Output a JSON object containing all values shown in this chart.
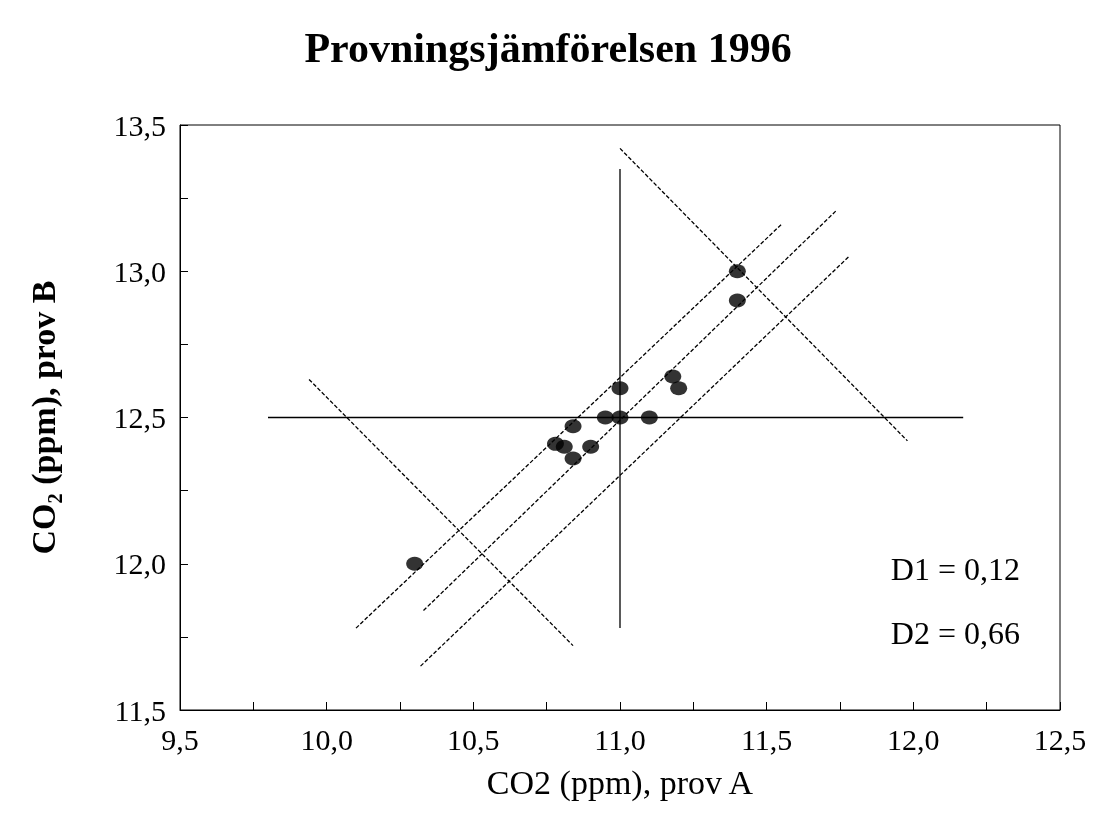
{
  "chart_data": {
    "type": "scatter",
    "title": "Provningsjämförelsen 1996",
    "xlabel": "CO2 (ppm), prov A",
    "ylabel": "CO₂ (ppm), prov B",
    "xlim": [
      9.5,
      12.5
    ],
    "ylim": [
      11.5,
      13.5
    ],
    "xticks": [
      {
        "value": 9.5,
        "label": "9,5"
      },
      {
        "value": 9.75,
        "label": null
      },
      {
        "value": 10.0,
        "label": "10,0"
      },
      {
        "value": 10.25,
        "label": null
      },
      {
        "value": 10.5,
        "label": "10,5"
      },
      {
        "value": 10.75,
        "label": null
      },
      {
        "value": 11.0,
        "label": "11,0"
      },
      {
        "value": 11.25,
        "label": null
      },
      {
        "value": 11.5,
        "label": "11,5"
      },
      {
        "value": 11.75,
        "label": null
      },
      {
        "value": 12.0,
        "label": "12,0"
      },
      {
        "value": 12.25,
        "label": null
      },
      {
        "value": 12.5,
        "label": "12,5"
      }
    ],
    "yticks": [
      {
        "value": 11.5,
        "label": "11,5"
      },
      {
        "value": 11.75,
        "label": null
      },
      {
        "value": 12.0,
        "label": "12,0"
      },
      {
        "value": 12.25,
        "label": null
      },
      {
        "value": 12.5,
        "label": "12,5"
      },
      {
        "value": 12.75,
        "label": null
      },
      {
        "value": 13.0,
        "label": "13,0"
      },
      {
        "value": 13.25,
        "label": null
      },
      {
        "value": 13.5,
        "label": "13,5"
      }
    ],
    "grid": false,
    "annotations": [
      "D1 = 0,12",
      "D2 = 0,66"
    ],
    "series": [
      {
        "type": "line",
        "line_style": "solid",
        "marker": "none",
        "color": "#000000",
        "x": [
          9.8,
          12.17
        ],
        "values": [
          12.5,
          12.5
        ]
      },
      {
        "type": "line",
        "line_style": "solid",
        "marker": "none",
        "color": "#000000",
        "x": [
          11.0,
          11.0
        ],
        "values": [
          11.78,
          13.35
        ]
      },
      {
        "type": "line",
        "line_style": "dashed",
        "marker": "none",
        "color": "#000000",
        "x": [
          10.33,
          11.74
        ],
        "values": [
          11.84,
          13.21
        ]
      },
      {
        "type": "line",
        "line_style": "dashed",
        "marker": "none",
        "color": "#000000",
        "x": [
          10.1,
          11.55
        ],
        "values": [
          11.78,
          13.16
        ]
      },
      {
        "type": "line",
        "line_style": "dashed",
        "marker": "none",
        "color": "#000000",
        "x": [
          10.32,
          11.78
        ],
        "values": [
          11.65,
          13.05
        ]
      },
      {
        "type": "line",
        "line_style": "dashed",
        "marker": "none",
        "color": "#000000",
        "x": [
          9.94,
          10.84
        ],
        "values": [
          12.63,
          11.72
        ]
      },
      {
        "type": "line",
        "line_style": "dashed",
        "marker": "none",
        "color": "#000000",
        "x": [
          11.0,
          11.98
        ],
        "values": [
          13.42,
          12.42
        ]
      },
      {
        "marker": "circle",
        "color": "#000000",
        "x": [
          10.3,
          11.4,
          11.4,
          11.0,
          11.18,
          11.2,
          10.95,
          11.0,
          11.1,
          10.84,
          10.78,
          10.81,
          10.9,
          10.84
        ],
        "values": [
          12.0,
          13.0,
          12.9,
          12.6,
          12.64,
          12.6,
          12.5,
          12.5,
          12.5,
          12.47,
          12.41,
          12.4,
          12.4,
          12.36
        ]
      }
    ]
  }
}
